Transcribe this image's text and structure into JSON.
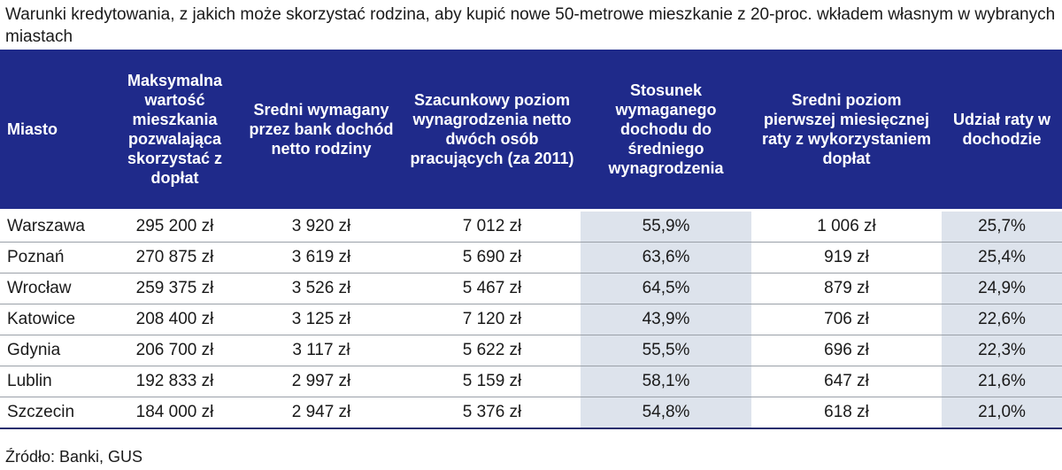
{
  "title": "Warunki kredytowania, z jakich może skorzystać rodzina, aby kupić nowe 50-metrowe mieszkanie z 20-proc. wkładem własnym w wybranych miastach",
  "colors": {
    "header_bg": "#1f2a8a",
    "header_text": "#ffffff",
    "highlight_bg": "#dde3ec",
    "row_border": "#9aa0a8"
  },
  "table": {
    "headers": [
      "Miasto",
      "Maksymalna wartość mieszkania pozwalająca skorzystać z dopłat",
      "Sredni wymagany przez bank dochód netto rodziny",
      "Szacunkowy poziom wynagrodzenia netto dwóch osób pracujących (za 2011)",
      "Stosunek wymaganego dochodu do średniego wynagrodzenia",
      "Sredni poziom pierwszej miesięcznej raty z wykorzystaniem dopłat",
      "Udział raty w dochodzie"
    ],
    "rows": [
      [
        "Warszawa",
        "295 200 zł",
        "3 920 zł",
        "7 012 zł",
        "55,9%",
        "1 006 zł",
        "25,7%"
      ],
      [
        "Poznań",
        "270 875 zł",
        "3 619 zł",
        "5 690 zł",
        "63,6%",
        "919 zł",
        "25,4%"
      ],
      [
        "Wrocław",
        "259 375 zł",
        "3 526 zł",
        "5 467 zł",
        "64,5%",
        "879 zł",
        "24,9%"
      ],
      [
        "Katowice",
        "208 400 zł",
        "3 125 zł",
        "7 120 zł",
        "43,9%",
        "706 zł",
        "22,6%"
      ],
      [
        "Gdynia",
        "206 700 zł",
        "3 117 zł",
        "5 622 zł",
        "55,5%",
        "696 zł",
        "22,3%"
      ],
      [
        "Lublin",
        "192 833 zł",
        "2 997 zł",
        "5 159 zł",
        "58,1%",
        "647 zł",
        "21,6%"
      ],
      [
        "Szczecin",
        "184 000 zł",
        "2 947 zł",
        "5 376 zł",
        "54,8%",
        "618 zł",
        "21,0%"
      ]
    ]
  },
  "source": "Źródło: Banki, GUS"
}
